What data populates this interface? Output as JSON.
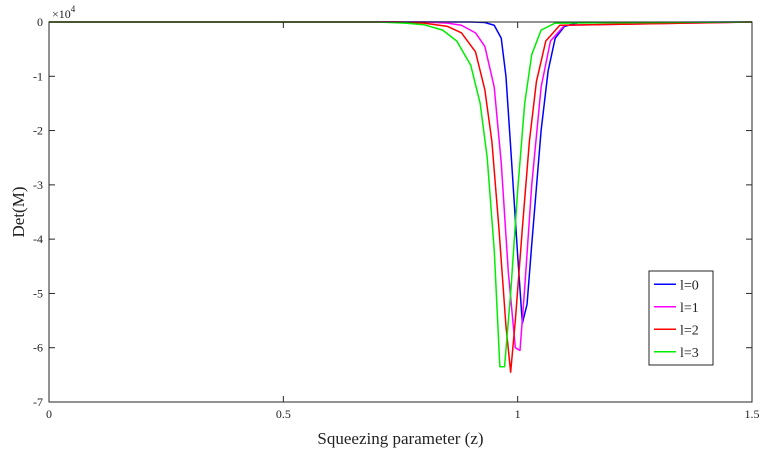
{
  "chart_data": {
    "type": "line",
    "title": "",
    "xlabel": "Squeezing parameter (z)",
    "ylabel": "Det(M)",
    "y_exponent_base": "×10",
    "y_exponent_power": "4",
    "xlim": [
      0,
      1.5
    ],
    "ylim": [
      -7,
      0
    ],
    "xticks": [
      0,
      0.5,
      1,
      1.5
    ],
    "xtick_labels": [
      "0",
      "0.5",
      "1",
      "1.5"
    ],
    "yticks": [
      0,
      -1,
      -2,
      -3,
      -4,
      -5,
      -6,
      -7
    ],
    "ytick_labels": [
      "0",
      "-1",
      "-2",
      "-3",
      "-4",
      "-5",
      "-6",
      "-7"
    ],
    "grid": false,
    "legend_position": "lower-right",
    "series": [
      {
        "name": "l=0",
        "color": "#0000ff",
        "x": [
          0,
          0.9,
          0.93,
          0.95,
          0.965,
          0.975,
          0.985,
          1.0,
          1.01,
          1.02,
          1.03,
          1.05,
          1.065,
          1.08,
          1.1,
          1.13,
          1.5
        ],
        "y": [
          0,
          0,
          -0.01,
          -0.06,
          -0.3,
          -1.0,
          -2.3,
          -4.3,
          -5.55,
          -5.2,
          -4.1,
          -2.0,
          -0.9,
          -0.3,
          -0.08,
          -0.01,
          0
        ]
      },
      {
        "name": "l=1",
        "color": "#ff00ff",
        "x": [
          0,
          0.8,
          0.85,
          0.88,
          0.91,
          0.93,
          0.95,
          0.965,
          0.98,
          0.995,
          1.005,
          1.015,
          1.03,
          1.05,
          1.07,
          1.1,
          1.5
        ],
        "y": [
          0,
          0,
          -0.02,
          -0.06,
          -0.2,
          -0.45,
          -1.2,
          -2.6,
          -4.6,
          -6.0,
          -6.05,
          -4.9,
          -3.0,
          -1.2,
          -0.35,
          -0.06,
          0
        ]
      },
      {
        "name": "l=2",
        "color": "#ff0000",
        "x": [
          0,
          0.75,
          0.8,
          0.85,
          0.88,
          0.91,
          0.93,
          0.945,
          0.96,
          0.975,
          0.985,
          0.995,
          1.01,
          1.025,
          1.04,
          1.06,
          1.09,
          1.5
        ],
        "y": [
          0,
          0,
          -0.02,
          -0.08,
          -0.2,
          -0.55,
          -1.25,
          -2.2,
          -3.8,
          -5.6,
          -6.45,
          -5.5,
          -3.8,
          -2.2,
          -1.1,
          -0.35,
          -0.06,
          0
        ]
      },
      {
        "name": "l=3",
        "color": "#00ee00",
        "x": [
          0,
          0.7,
          0.76,
          0.8,
          0.84,
          0.87,
          0.9,
          0.92,
          0.935,
          0.95,
          0.962,
          0.972,
          0.985,
          1.0,
          1.015,
          1.03,
          1.05,
          1.08,
          1.5
        ],
        "y": [
          0,
          0,
          -0.02,
          -0.05,
          -0.15,
          -0.35,
          -0.8,
          -1.5,
          -2.5,
          -4.2,
          -6.35,
          -6.35,
          -5.0,
          -3.1,
          -1.5,
          -0.6,
          -0.15,
          -0.02,
          0
        ]
      }
    ]
  }
}
